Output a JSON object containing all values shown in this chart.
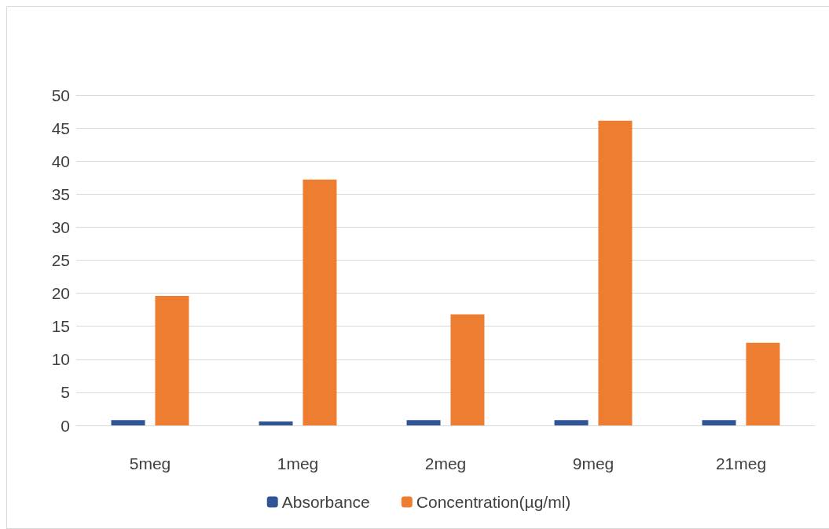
{
  "chart_data": {
    "type": "bar",
    "categories": [
      "5meg",
      "1meg",
      "2meg",
      "9meg",
      "21meg"
    ],
    "series": [
      {
        "name": "Absorbance",
        "color": "#2f5597",
        "values": [
          0.8,
          0.6,
          0.8,
          0.8,
          0.8
        ]
      },
      {
        "name": "Concentration(µg/ml)",
        "color": "#ed7d31",
        "values": [
          19.6,
          37.2,
          16.8,
          46.1,
          12.5
        ]
      }
    ],
    "ylim": [
      0,
      50
    ],
    "yticks": [
      0,
      5,
      10,
      15,
      20,
      25,
      30,
      35,
      40,
      45,
      50
    ],
    "grid": "y",
    "legend": "bottom"
  }
}
